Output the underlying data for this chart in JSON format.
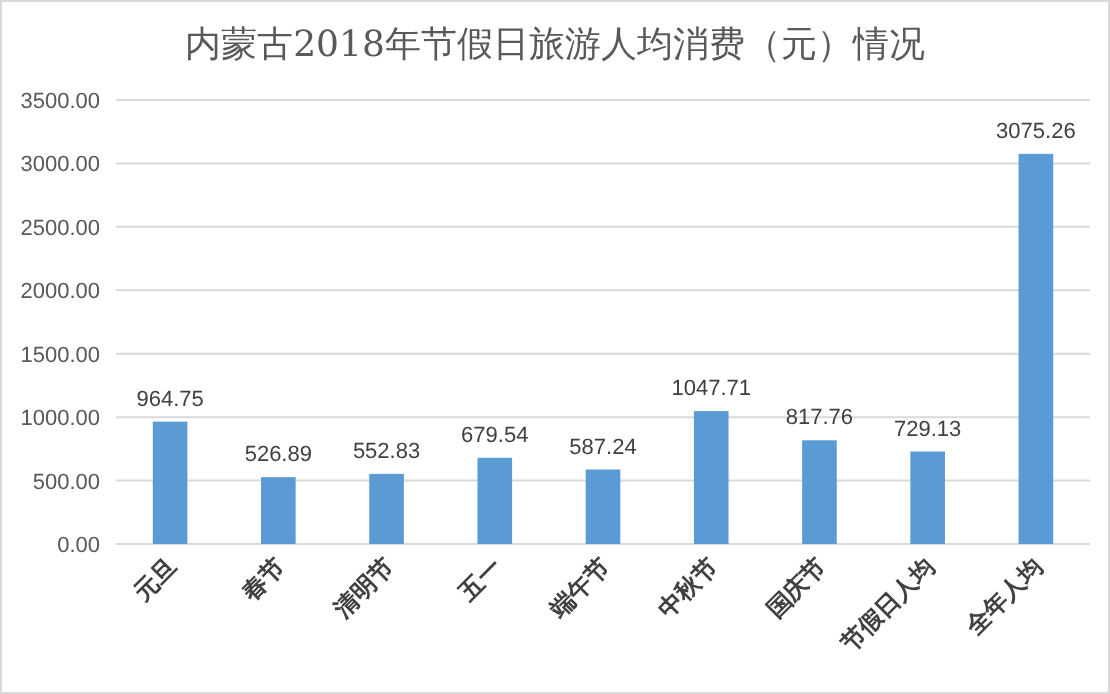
{
  "chart_data": {
    "type": "bar",
    "title": "内蒙古2018年节假日旅游人均消费（元）情况",
    "categories": [
      "元旦",
      "春节",
      "清明节",
      "五一",
      "端午节",
      "中秋节",
      "国庆节",
      "节假日人均",
      "全年人均"
    ],
    "values": [
      964.75,
      526.89,
      552.83,
      679.54,
      587.24,
      1047.71,
      817.76,
      729.13,
      3075.26
    ],
    "color": "#5b9bd5",
    "data_labels": true,
    "grid": "y",
    "ylim": [
      0,
      3500
    ],
    "yticks": [
      {
        "value": 0,
        "label": "0.00"
      },
      {
        "value": 500,
        "label": "500.00"
      },
      {
        "value": 1000,
        "label": "1000.00"
      },
      {
        "value": 1500,
        "label": "1500.00"
      },
      {
        "value": 2000,
        "label": "2000.00"
      },
      {
        "value": 2500,
        "label": "2500.00"
      },
      {
        "value": 3000,
        "label": "3000.00"
      },
      {
        "value": 3500,
        "label": "3500.00"
      }
    ]
  }
}
